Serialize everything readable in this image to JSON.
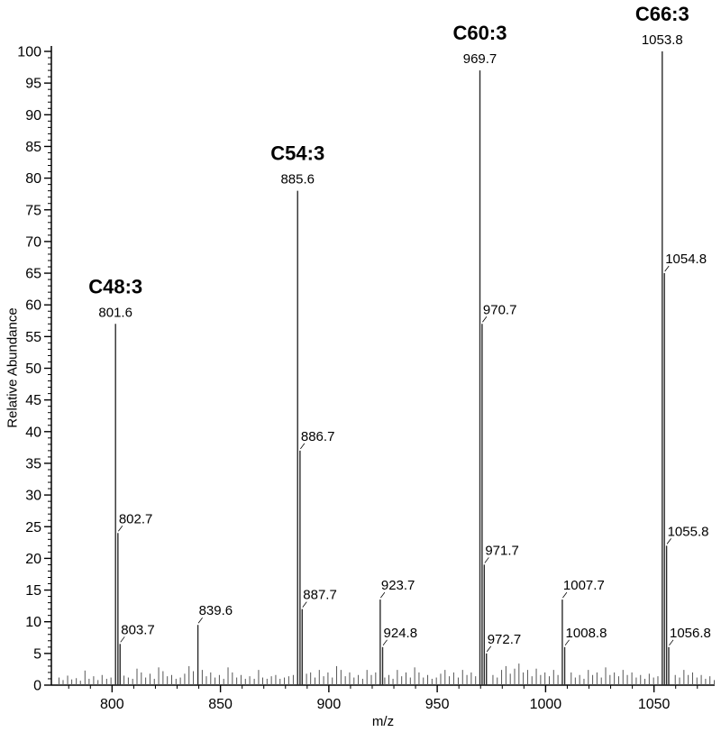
{
  "chart_data": {
    "type": "bar",
    "subtype": "mass-spectrum",
    "title": "",
    "xlabel": "m/z",
    "ylabel": "Relative Abundance",
    "xlim": [
      772,
      1078
    ],
    "ylim": [
      0,
      100
    ],
    "xticks": [
      800,
      850,
      900,
      950,
      1000,
      1050
    ],
    "x_minor_step": 10,
    "ytick_step": 5,
    "y_minor_step": 1,
    "grid": false,
    "legend": "none",
    "peaks": [
      {
        "mz": 801.6,
        "intensity": 57,
        "label": "801.6",
        "compound": "C48:3"
      },
      {
        "mz": 802.7,
        "intensity": 24,
        "label": "802.7"
      },
      {
        "mz": 803.7,
        "intensity": 6.5,
        "label": "803.7"
      },
      {
        "mz": 839.6,
        "intensity": 9.5,
        "label": "839.6"
      },
      {
        "mz": 885.6,
        "intensity": 78,
        "label": "885.6",
        "compound": "C54:3"
      },
      {
        "mz": 886.7,
        "intensity": 37,
        "label": "886.7"
      },
      {
        "mz": 887.7,
        "intensity": 12,
        "label": "887.7"
      },
      {
        "mz": 923.7,
        "intensity": 13.5,
        "label": "923.7"
      },
      {
        "mz": 924.8,
        "intensity": 6,
        "label": "924.8"
      },
      {
        "mz": 969.7,
        "intensity": 97,
        "label": "969.7",
        "compound": "C60:3"
      },
      {
        "mz": 970.7,
        "intensity": 57,
        "label": "970.7"
      },
      {
        "mz": 971.7,
        "intensity": 19,
        "label": "971.7"
      },
      {
        "mz": 972.7,
        "intensity": 5,
        "label": "972.7"
      },
      {
        "mz": 1007.7,
        "intensity": 13.5,
        "label": "1007.7"
      },
      {
        "mz": 1008.8,
        "intensity": 6,
        "label": "1008.8"
      },
      {
        "mz": 1053.8,
        "intensity": 100,
        "label": "1053.8",
        "compound": "C66:3"
      },
      {
        "mz": 1054.8,
        "intensity": 65,
        "label": "1054.8"
      },
      {
        "mz": 1055.8,
        "intensity": 22,
        "label": "1055.8"
      },
      {
        "mz": 1056.8,
        "intensity": 6,
        "label": "1056.8"
      }
    ],
    "noise": [
      [
        775.5,
        1.2
      ],
      [
        777.4,
        0.8
      ],
      [
        779.5,
        1.5
      ],
      [
        781.4,
        0.9
      ],
      [
        783.5,
        1.1
      ],
      [
        785.4,
        0.7
      ],
      [
        787.5,
        2.3
      ],
      [
        789.4,
        1.0
      ],
      [
        791.5,
        1.4
      ],
      [
        793.5,
        0.8
      ],
      [
        795.4,
        1.6
      ],
      [
        797.5,
        1.0
      ],
      [
        799.5,
        1.2
      ],
      [
        805.5,
        1.5
      ],
      [
        807.5,
        1.2
      ],
      [
        809.5,
        1.0
      ],
      [
        811.5,
        2.6
      ],
      [
        813.5,
        2.0
      ],
      [
        815.5,
        1.2
      ],
      [
        817.5,
        1.8
      ],
      [
        819.5,
        1.0
      ],
      [
        821.5,
        2.8
      ],
      [
        823.5,
        2.2
      ],
      [
        825.5,
        1.4
      ],
      [
        827.5,
        1.6
      ],
      [
        829.5,
        1.0
      ],
      [
        831.5,
        1.2
      ],
      [
        833.5,
        1.8
      ],
      [
        835.5,
        3.0
      ],
      [
        837.5,
        2.2
      ],
      [
        841.6,
        2.4
      ],
      [
        843.5,
        1.4
      ],
      [
        845.5,
        2.0
      ],
      [
        847.5,
        1.2
      ],
      [
        849.5,
        1.6
      ],
      [
        851.5,
        1.0
      ],
      [
        853.5,
        2.8
      ],
      [
        855.5,
        2.0
      ],
      [
        857.5,
        1.2
      ],
      [
        859.5,
        1.6
      ],
      [
        861.5,
        1.0
      ],
      [
        863.5,
        1.4
      ],
      [
        865.6,
        1.0
      ],
      [
        867.6,
        2.4
      ],
      [
        869.5,
        1.2
      ],
      [
        871.5,
        1.0
      ],
      [
        873.5,
        1.4
      ],
      [
        875.5,
        1.6
      ],
      [
        877.5,
        1.0
      ],
      [
        879.5,
        1.2
      ],
      [
        881.5,
        1.4
      ],
      [
        883.6,
        1.6
      ],
      [
        889.7,
        1.8
      ],
      [
        891.6,
        2.0
      ],
      [
        893.6,
        1.2
      ],
      [
        895.6,
        2.4
      ],
      [
        897.6,
        1.4
      ],
      [
        899.6,
        2.0
      ],
      [
        901.6,
        1.2
      ],
      [
        903.6,
        3.0
      ],
      [
        905.6,
        2.4
      ],
      [
        907.6,
        1.4
      ],
      [
        909.6,
        2.0
      ],
      [
        911.6,
        1.2
      ],
      [
        913.6,
        1.6
      ],
      [
        915.6,
        1.0
      ],
      [
        917.6,
        2.4
      ],
      [
        919.6,
        1.6
      ],
      [
        921.6,
        2.0
      ],
      [
        925.8,
        1.2
      ],
      [
        927.7,
        1.6
      ],
      [
        929.6,
        1.0
      ],
      [
        931.6,
        2.4
      ],
      [
        933.6,
        1.4
      ],
      [
        935.6,
        2.0
      ],
      [
        937.6,
        1.2
      ],
      [
        939.6,
        2.8
      ],
      [
        941.6,
        2.0
      ],
      [
        943.6,
        1.2
      ],
      [
        945.6,
        1.6
      ],
      [
        947.6,
        1.0
      ],
      [
        949.6,
        1.2
      ],
      [
        951.6,
        1.8
      ],
      [
        953.6,
        2.4
      ],
      [
        955.6,
        1.4
      ],
      [
        957.6,
        2.0
      ],
      [
        959.7,
        1.2
      ],
      [
        961.7,
        2.4
      ],
      [
        963.7,
        1.6
      ],
      [
        965.7,
        2.0
      ],
      [
        967.7,
        1.4
      ],
      [
        975.7,
        1.6
      ],
      [
        977.7,
        1.2
      ],
      [
        979.7,
        2.4
      ],
      [
        981.7,
        3.0
      ],
      [
        983.7,
        1.8
      ],
      [
        985.7,
        2.6
      ],
      [
        987.7,
        3.4
      ],
      [
        989.7,
        2.0
      ],
      [
        991.7,
        2.4
      ],
      [
        993.7,
        1.4
      ],
      [
        995.7,
        2.6
      ],
      [
        997.7,
        1.6
      ],
      [
        999.7,
        2.0
      ],
      [
        1001.7,
        1.4
      ],
      [
        1003.7,
        2.4
      ],
      [
        1005.7,
        1.6
      ],
      [
        1011.8,
        2.0
      ],
      [
        1013.7,
        1.2
      ],
      [
        1015.7,
        1.6
      ],
      [
        1017.7,
        1.0
      ],
      [
        1019.7,
        2.4
      ],
      [
        1021.7,
        1.6
      ],
      [
        1023.7,
        2.0
      ],
      [
        1025.7,
        1.2
      ],
      [
        1027.7,
        2.8
      ],
      [
        1029.7,
        1.6
      ],
      [
        1031.7,
        2.0
      ],
      [
        1033.7,
        1.4
      ],
      [
        1035.7,
        2.4
      ],
      [
        1037.7,
        1.6
      ],
      [
        1039.8,
        2.0
      ],
      [
        1041.8,
        1.2
      ],
      [
        1043.8,
        1.6
      ],
      [
        1045.8,
        1.0
      ],
      [
        1047.8,
        1.8
      ],
      [
        1049.8,
        1.2
      ],
      [
        1051.8,
        1.4
      ],
      [
        1059.8,
        1.6
      ],
      [
        1061.8,
        1.2
      ],
      [
        1063.8,
        2.4
      ],
      [
        1065.8,
        1.6
      ],
      [
        1067.8,
        2.0
      ],
      [
        1069.8,
        1.2
      ],
      [
        1071.8,
        1.6
      ],
      [
        1073.8,
        1.0
      ],
      [
        1075.8,
        1.4
      ],
      [
        1077.8,
        0.8
      ]
    ],
    "annotations": [
      {
        "text": "C48:3",
        "mz": 801.6
      },
      {
        "text": "C54:3",
        "mz": 885.6
      },
      {
        "text": "C60:3",
        "mz": 969.7
      },
      {
        "text": "C66:3",
        "mz": 1053.8
      }
    ]
  },
  "colors": {
    "peak": "#2b2b2b",
    "noise": "#555555",
    "axis": "#000000",
    "text": "#000000",
    "background": "#ffffff"
  }
}
